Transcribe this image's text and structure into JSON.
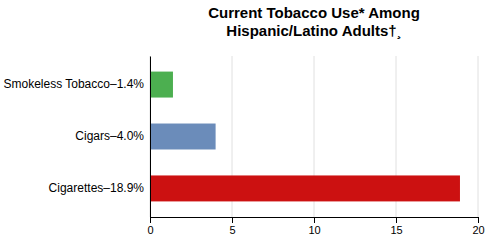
{
  "chart_data": {
    "type": "bar",
    "orientation": "horizontal",
    "title": [
      "Current Tobacco Use* Among",
      "Hispanic/Latino Adults†¸"
    ],
    "categories": [
      "Smokeless Tobacco–1.4%",
      "Cigars–4.0%",
      "Cigarettes–18.9%"
    ],
    "values": [
      1.4,
      4.0,
      18.9
    ],
    "colors": [
      "#4caf50",
      "#6b8cba",
      "#cc1111"
    ],
    "xlim": [
      0,
      20
    ],
    "xticks": [
      0,
      5,
      10,
      15,
      20
    ],
    "grid": true
  }
}
